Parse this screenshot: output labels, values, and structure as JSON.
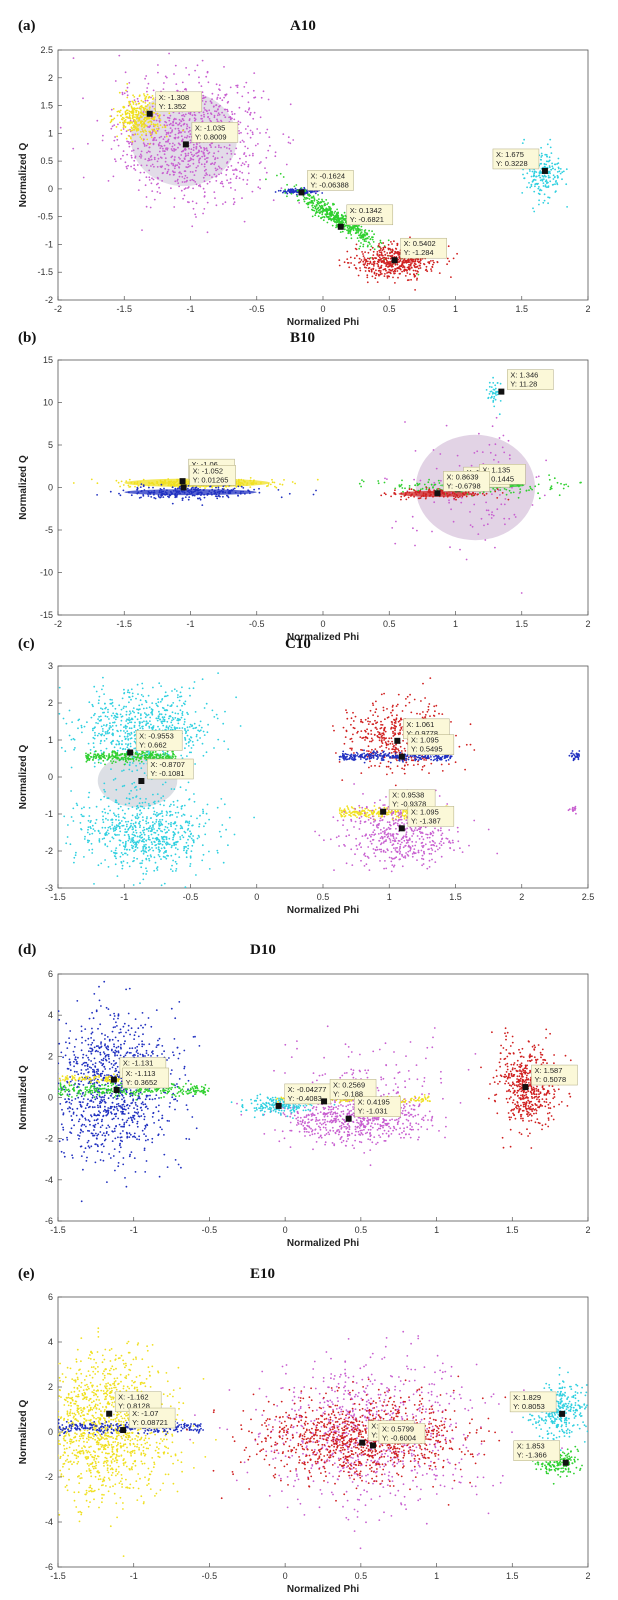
{
  "chart_data": [
    {
      "type": "scatter",
      "panel_label": "(a)",
      "title": "A10",
      "xlabel": "Normalized Phi",
      "ylabel": "Normalized Q",
      "xlim": [
        -2,
        2
      ],
      "ylim": [
        -2,
        2.5
      ],
      "xticks": [
        "-2",
        "-1.5",
        "-1",
        "-0.5",
        "0",
        "0.5",
        "1",
        "1.5",
        "2"
      ],
      "yticks": [
        "-2",
        "-1.5",
        "-1",
        "-0.5",
        "0",
        "0.5",
        "1",
        "1.5",
        "2",
        "2.5"
      ],
      "clusters": [
        {
          "color": "#c85fd0",
          "cx": -1.0,
          "cy": 0.9,
          "sx": 0.28,
          "sy": 0.55,
          "n": 1000,
          "shape": "cloud"
        },
        {
          "color": "#f0e020",
          "cx": -1.38,
          "cy": 1.3,
          "sx": 0.09,
          "sy": 0.18,
          "n": 350,
          "shape": "cloud"
        },
        {
          "color": "#2030c0",
          "cx": -0.17,
          "cy": -0.04,
          "sx": 0.07,
          "sy": 0.02,
          "n": 150,
          "shape": "cloud"
        },
        {
          "color": "#30d030",
          "cx": 0.12,
          "cy": -0.55,
          "sx": 0.15,
          "sy": 0.25,
          "n": 500,
          "shape": "diag"
        },
        {
          "color": "#d02020",
          "cx": 0.55,
          "cy": -1.3,
          "sx": 0.16,
          "sy": 0.15,
          "n": 550,
          "shape": "cloud"
        },
        {
          "color": "#30d0e0",
          "cx": 1.65,
          "cy": 0.3,
          "sx": 0.08,
          "sy": 0.2,
          "n": 200,
          "shape": "cloud"
        }
      ],
      "ellipses": [
        {
          "color": "#d8d0e0",
          "cx": -1.05,
          "cy": 0.9,
          "rx": 0.4,
          "ry": 0.85
        }
      ],
      "datatips": [
        {
          "x": -1.308,
          "y": 1.352,
          "lines": [
            "X: -1.308",
            "Y: 1.352"
          ]
        },
        {
          "x": -1.035,
          "y": 0.8009,
          "lines": [
            "X: -1.035",
            "Y: 0.8009"
          ]
        },
        {
          "x": -0.1624,
          "y": -0.06388,
          "lines": [
            "X: -0.1624",
            "Y: -0.06388"
          ]
        },
        {
          "x": 0.1342,
          "y": -0.6821,
          "lines": [
            "X: 0.1342",
            "Y: -0.6821"
          ]
        },
        {
          "x": 0.5402,
          "y": -1.284,
          "lines": [
            "X: 0.5402",
            "Y: -1.284"
          ]
        },
        {
          "x": 1.675,
          "y": 0.3228,
          "lines": [
            "X: 1.675",
            "Y: 0.3228"
          ]
        }
      ]
    },
    {
      "type": "scatter",
      "panel_label": "(b)",
      "title": "B10",
      "xlabel": "Normalized Phi",
      "ylabel": "Normalized Q",
      "xlim": [
        -2,
        2
      ],
      "ylim": [
        -15,
        15
      ],
      "xticks": [
        "-2",
        "-1.5",
        "-1",
        "-0.5",
        "0",
        "0.5",
        "1",
        "1.5",
        "2"
      ],
      "yticks": [
        "-15",
        "-10",
        "-5",
        "0",
        "5",
        "10",
        "15"
      ],
      "clusters": [
        {
          "color": "#c85fd0",
          "cx": 1.15,
          "cy": 0.0,
          "sx": 0.28,
          "sy": 3.5,
          "n": 120,
          "shape": "cloud"
        },
        {
          "color": "#f0e020",
          "cx": -0.95,
          "cy": 0.5,
          "sx": 0.3,
          "sy": 0.25,
          "n": 300,
          "shape": "cloud"
        },
        {
          "color": "#2030c0",
          "cx": -1.0,
          "cy": -0.6,
          "sx": 0.25,
          "sy": 0.4,
          "n": 250,
          "shape": "cloud"
        },
        {
          "color": "#30d030",
          "cx": 1.15,
          "cy": 0.2,
          "sx": 0.35,
          "sy": 0.5,
          "n": 200,
          "shape": "cloud"
        },
        {
          "color": "#d02020",
          "cx": 0.9,
          "cy": -0.7,
          "sx": 0.2,
          "sy": 0.3,
          "n": 150,
          "shape": "cloud"
        },
        {
          "color": "#30d0e0",
          "cx": 1.3,
          "cy": 11.0,
          "sx": 0.03,
          "sy": 0.8,
          "n": 40,
          "shape": "cloud"
        }
      ],
      "ellipses": [
        {
          "color": "#d8c4dc",
          "cx": 1.15,
          "cy": 0.0,
          "rx": 0.45,
          "ry": 6.2
        },
        {
          "color": "#f0e020",
          "cx": -0.95,
          "cy": 0.55,
          "rx": 0.55,
          "ry": 0.5
        },
        {
          "color": "#2030c0",
          "cx": -1.0,
          "cy": -0.55,
          "rx": 0.5,
          "ry": 0.35
        },
        {
          "color": "#d02020",
          "cx": 0.85,
          "cy": -0.75,
          "rx": 0.28,
          "ry": 0.35
        },
        {
          "color": "#30d030",
          "cx": 1.2,
          "cy": 0.25,
          "rx": 0.32,
          "ry": 0.3
        }
      ],
      "datatips": [
        {
          "x": -1.06,
          "y": 0.7476,
          "lines": [
            "X: -1.06",
            "Y: 0.7476"
          ]
        },
        {
          "x": -1.052,
          "y": 0.01265,
          "lines": [
            "X: -1.052",
            "Y: 0.01265"
          ]
        },
        {
          "x": 1.016,
          "y": -0.1925,
          "lines": [
            "X: 1.016",
            "Y: -0.1925"
          ]
        },
        {
          "x": 1.135,
          "y": 0.1445,
          "lines": [
            "X: 1.135",
            "Y: 0.1445"
          ]
        },
        {
          "x": 0.8639,
          "y": -0.6798,
          "lines": [
            "X: 0.8639",
            "Y: -0.6798"
          ]
        },
        {
          "x": 1.346,
          "y": 11.28,
          "lines": [
            "X: 1.346",
            "Y: 11.28"
          ]
        }
      ]
    },
    {
      "type": "scatter",
      "panel_label": "(c)",
      "title": "C10",
      "xlabel": "Normalized Phi",
      "ylabel": "Normalized Q",
      "xlim": [
        -1.5,
        2.5
      ],
      "ylim": [
        -3,
        3
      ],
      "xticks": [
        "-1.5",
        "-1",
        "-0.5",
        "0",
        "0.5",
        "1",
        "1.5",
        "2",
        "2.5"
      ],
      "yticks": [
        "-3",
        "-2",
        "-1",
        "0",
        "1",
        "2",
        "3"
      ],
      "clusters": [
        {
          "color": "#30d0e0",
          "cx": -0.85,
          "cy": 1.3,
          "sx": 0.25,
          "sy": 0.55,
          "n": 700,
          "shape": "cloud"
        },
        {
          "color": "#30d0e0",
          "cx": -0.85,
          "cy": -1.5,
          "sx": 0.25,
          "sy": 0.55,
          "n": 700,
          "shape": "cloud"
        },
        {
          "color": "#30d030",
          "cx": -0.95,
          "cy": 0.55,
          "sx": 0.2,
          "sy": 0.08,
          "n": 300,
          "shape": "band"
        },
        {
          "color": "#d02020",
          "cx": 1.05,
          "cy": 1.1,
          "sx": 0.2,
          "sy": 0.5,
          "n": 450,
          "shape": "cloud"
        },
        {
          "color": "#2030c0",
          "cx": 1.05,
          "cy": 0.55,
          "sx": 0.25,
          "sy": 0.06,
          "n": 300,
          "shape": "band"
        },
        {
          "color": "#f0e020",
          "cx": 1.05,
          "cy": -0.95,
          "sx": 0.25,
          "sy": 0.08,
          "n": 300,
          "shape": "band"
        },
        {
          "color": "#c85fd0",
          "cx": 1.1,
          "cy": -1.5,
          "sx": 0.22,
          "sy": 0.45,
          "n": 500,
          "shape": "cloud"
        },
        {
          "color": "#2030c0",
          "cx": 2.4,
          "cy": 0.55,
          "sx": 0.02,
          "sy": 0.06,
          "n": 30,
          "shape": "cloud"
        },
        {
          "color": "#c85fd0",
          "cx": 2.4,
          "cy": -0.9,
          "sx": 0.02,
          "sy": 0.05,
          "n": 15,
          "shape": "cloud"
        }
      ],
      "ellipses": [
        {
          "color": "#d0d4dc",
          "cx": -0.9,
          "cy": -0.1,
          "rx": 0.3,
          "ry": 0.72
        }
      ],
      "datatips": [
        {
          "x": -0.9553,
          "y": 0.662,
          "lines": [
            "X: -0.9553",
            "Y: 0.662"
          ]
        },
        {
          "x": -0.8707,
          "y": -0.1081,
          "lines": [
            "X: -0.8707",
            "Y: -0.1081"
          ]
        },
        {
          "x": 1.061,
          "y": 0.9778,
          "lines": [
            "X: 1.061",
            "Y: 0.9778"
          ]
        },
        {
          "x": 1.095,
          "y": 0.5495,
          "lines": [
            "X: 1.095",
            "Y: 0.5495"
          ]
        },
        {
          "x": 0.9538,
          "y": -0.9378,
          "lines": [
            "X: 0.9538",
            "Y: -0.9378"
          ]
        },
        {
          "x": 1.095,
          "y": -1.387,
          "lines": [
            "X: 1.095",
            "Y: -1.387"
          ]
        }
      ]
    },
    {
      "type": "scatter",
      "panel_label": "(d)",
      "title": "D10",
      "xlabel": "Normalized Phi",
      "ylabel": "Normalized Q",
      "xlim": [
        -1.5,
        2
      ],
      "ylim": [
        -6,
        6
      ],
      "xticks": [
        "-1.5",
        "-1",
        "-0.5",
        "0",
        "0.5",
        "1",
        "1.5",
        "2"
      ],
      "yticks": [
        "-6",
        "-4",
        "-2",
        "0",
        "2",
        "4",
        "6"
      ],
      "clusters": [
        {
          "color": "#2030c0",
          "cx": -1.15,
          "cy": 0.5,
          "sx": 0.22,
          "sy": 1.8,
          "n": 1100,
          "shape": "cloud"
        },
        {
          "color": "#30d030",
          "cx": -1.0,
          "cy": 0.35,
          "sx": 0.3,
          "sy": 0.15,
          "n": 300,
          "shape": "band"
        },
        {
          "color": "#f0e020",
          "cx": -1.15,
          "cy": 0.9,
          "sx": 0.2,
          "sy": 0.1,
          "n": 150,
          "shape": "band"
        },
        {
          "color": "#c85fd0",
          "cx": 0.45,
          "cy": -1.0,
          "sx": 0.25,
          "sy": 0.6,
          "n": 650,
          "shape": "cloud"
        },
        {
          "color": "#c85fd0",
          "cx": 0.55,
          "cy": 1.0,
          "sx": 0.3,
          "sy": 1.0,
          "n": 120,
          "shape": "cloud"
        },
        {
          "color": "#f0e020",
          "cx": 0.45,
          "cy": -0.1,
          "sx": 0.3,
          "sy": 0.08,
          "n": 200,
          "shape": "band"
        },
        {
          "color": "#30d0e0",
          "cx": -0.05,
          "cy": -0.4,
          "sx": 0.12,
          "sy": 0.2,
          "n": 200,
          "shape": "cloud"
        },
        {
          "color": "#d02020",
          "cx": 1.6,
          "cy": 0.6,
          "sx": 0.1,
          "sy": 1.0,
          "n": 550,
          "shape": "cloud"
        }
      ],
      "ellipses": [],
      "datatips": [
        {
          "x": -1.131,
          "y": 0.8649,
          "lines": [
            "X: -1.131",
            "Y: 0.8649"
          ]
        },
        {
          "x": -1.113,
          "y": 0.3652,
          "lines": [
            "X: -1.113",
            "Y: 0.3652"
          ]
        },
        {
          "x": -0.04277,
          "y": -0.4083,
          "lines": [
            "X: -0.04277",
            "Y: -0.4083"
          ]
        },
        {
          "x": 0.2569,
          "y": -0.188,
          "lines": [
            "X: 0.2569",
            "Y: -0.188"
          ]
        },
        {
          "x": 0.4195,
          "y": -1.031,
          "lines": [
            "X: 0.4195",
            "Y: -1.031"
          ]
        },
        {
          "x": 1.587,
          "y": 0.5078,
          "lines": [
            "X: 1.587",
            "Y: 0.5078"
          ]
        }
      ]
    },
    {
      "type": "scatter",
      "panel_label": "(e)",
      "title": "E10",
      "xlabel": "Normalized Phi",
      "ylabel": "Normalized Q",
      "xlim": [
        -1.5,
        2
      ],
      "ylim": [
        -6,
        6
      ],
      "xticks": [
        "-1.5",
        "-1",
        "-0.5",
        "0",
        "0.5",
        "1",
        "1.5",
        "2"
      ],
      "yticks": [
        "-6",
        "-4",
        "-2",
        "0",
        "2",
        "4",
        "6"
      ],
      "clusters": [
        {
          "color": "#f0e020",
          "cx": -1.2,
          "cy": 0.3,
          "sx": 0.22,
          "sy": 1.6,
          "n": 1300,
          "shape": "cloud"
        },
        {
          "color": "#2030c0",
          "cx": -1.05,
          "cy": 0.2,
          "sx": 0.3,
          "sy": 0.12,
          "n": 300,
          "shape": "band"
        },
        {
          "color": "#c85fd0",
          "cx": 0.55,
          "cy": 0.0,
          "sx": 0.35,
          "sy": 1.6,
          "n": 800,
          "shape": "cloud"
        },
        {
          "color": "#d02020",
          "cx": 0.5,
          "cy": -0.3,
          "sx": 0.35,
          "sy": 0.9,
          "n": 1100,
          "shape": "cloud"
        },
        {
          "color": "#30d0e0",
          "cx": 1.82,
          "cy": 1.0,
          "sx": 0.1,
          "sy": 0.6,
          "n": 350,
          "shape": "cloud"
        },
        {
          "color": "#30d030",
          "cx": 1.82,
          "cy": -1.3,
          "sx": 0.08,
          "sy": 0.3,
          "n": 180,
          "shape": "cloud"
        }
      ],
      "ellipses": [],
      "datatips": [
        {
          "x": -1.162,
          "y": 0.8128,
          "lines": [
            "X: -1.162",
            "Y: 0.8128"
          ]
        },
        {
          "x": -1.07,
          "y": 0.08721,
          "lines": [
            "X: -1.07",
            "Y: 0.08721"
          ]
        },
        {
          "x": 0.5089,
          "y": -0.4731,
          "lines": [
            "X: 0.5089",
            "Y: -0.4731"
          ]
        },
        {
          "x": 0.5799,
          "y": -0.6004,
          "lines": [
            "X: 0.5799",
            "Y: -0.6004"
          ]
        },
        {
          "x": 1.829,
          "y": 0.8053,
          "lines": [
            "X: 1.829",
            "Y: 0.8053"
          ]
        },
        {
          "x": 1.853,
          "y": -1.366,
          "lines": [
            "X: 1.853",
            "Y: -1.366"
          ]
        }
      ]
    }
  ]
}
